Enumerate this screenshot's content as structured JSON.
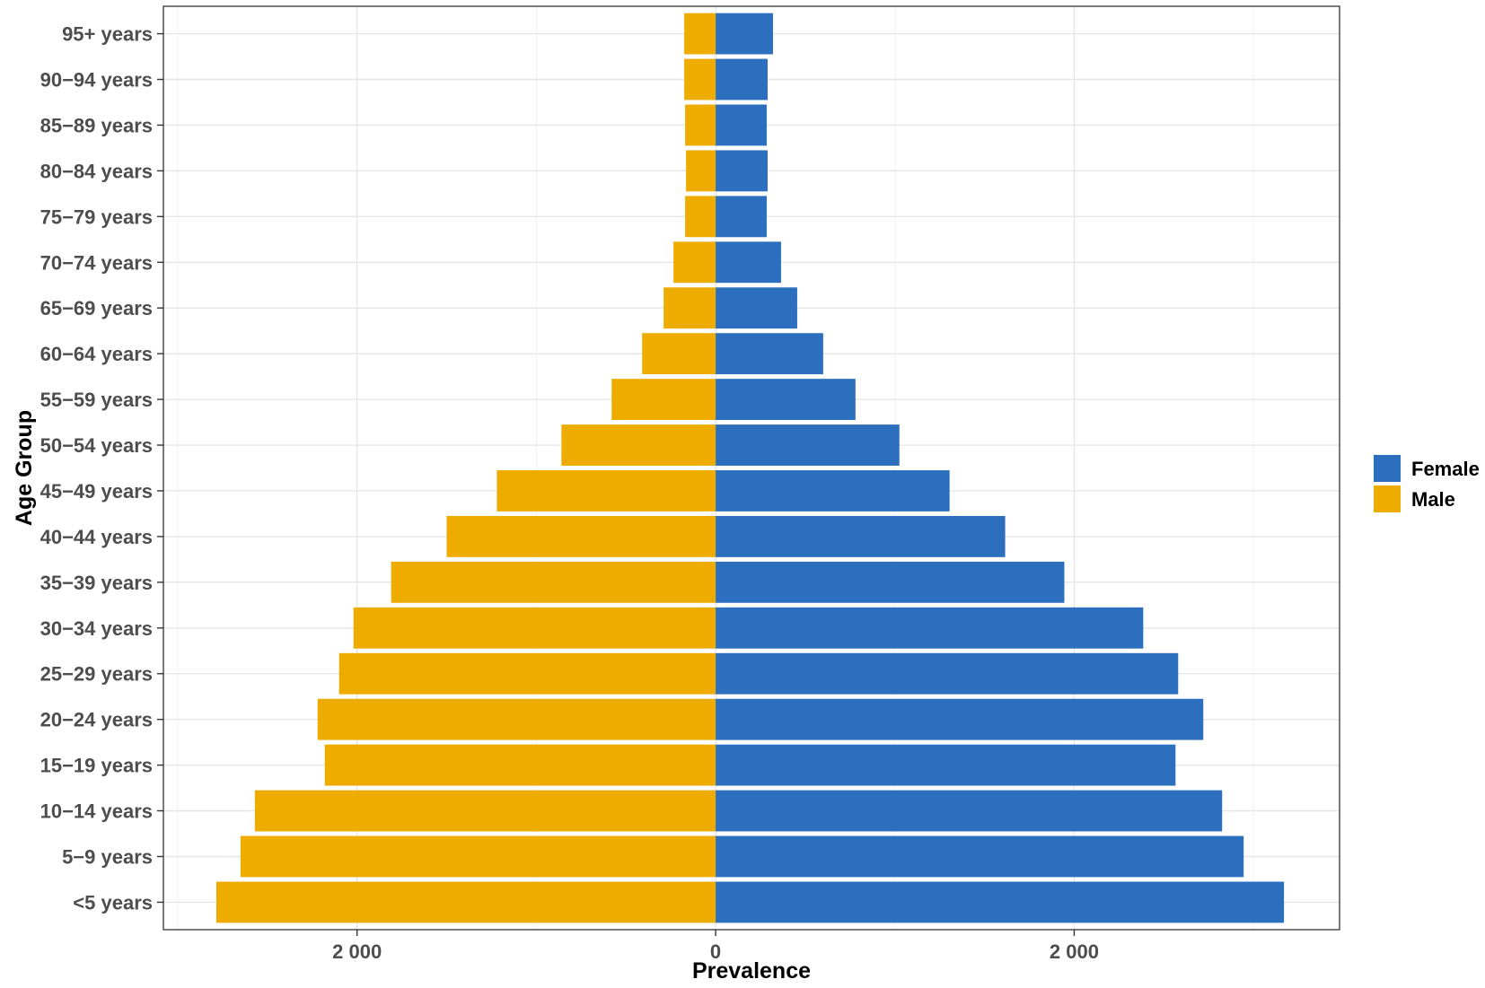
{
  "chart_data": {
    "type": "bar",
    "orientation": "horizontal",
    "layout": "population-pyramid",
    "categories": [
      "95+ years",
      "90−94 years",
      "85−89 years",
      "80−84 years",
      "75−79 years",
      "70−74 years",
      "65−69 years",
      "60−64 years",
      "55−59 years",
      "50−54 years",
      "45−49 years",
      "40−44 years",
      "35−39 years",
      "30−34 years",
      "25−29 years",
      "20−24 years",
      "15−19 years",
      "10−14 years",
      "5−9 years",
      "<5 years"
    ],
    "series": [
      {
        "name": "Female",
        "color": "#2b6fbe",
        "side": "right",
        "values": [
          320,
          290,
          285,
          290,
          285,
          365,
          455,
          600,
          780,
          1025,
          1305,
          1615,
          1945,
          2385,
          2580,
          2720,
          2565,
          2825,
          2945,
          3170
        ]
      },
      {
        "name": "Male",
        "color": "#eeab00",
        "side": "left",
        "values": [
          175,
          175,
          170,
          165,
          170,
          235,
          290,
          410,
          580,
          860,
          1220,
          1500,
          1810,
          2020,
          2100,
          2220,
          2180,
          2570,
          2650,
          2785
        ]
      }
    ],
    "xlim": [
      -3080,
      3480
    ],
    "xticks": [
      {
        "value": -2000,
        "label": "2 000"
      },
      {
        "value": 0,
        "label": "0"
      },
      {
        "value": 2000,
        "label": "2 000"
      }
    ],
    "xlabel": "Prevalence",
    "ylabel": "Age Group",
    "grid": true,
    "legend": {
      "position": "right",
      "entries": [
        "Female",
        "Male"
      ]
    }
  }
}
